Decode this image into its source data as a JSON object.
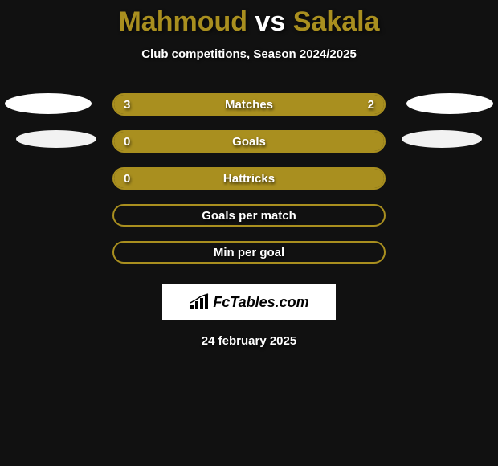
{
  "header": {
    "player1": "Mahmoud",
    "vs": "vs",
    "player2": "Sakala",
    "subtitle": "Club competitions, Season 2024/2025"
  },
  "colors": {
    "player1_accent": "#a98f1f",
    "player2_accent": "#a98f1f",
    "bar_fill": "#a98f1f",
    "bar_border": "#a98f1f",
    "background": "#111111"
  },
  "rows": [
    {
      "label": "Matches",
      "left_value": "3",
      "right_value": "2",
      "left_pct": 60,
      "right_pct": 40,
      "show_left_ellipse": true,
      "show_right_ellipse": true,
      "ellipse_class_left": "left1",
      "ellipse_class_right": "right1"
    },
    {
      "label": "Goals",
      "left_value": "0",
      "right_value": "",
      "left_pct": 100,
      "right_pct": 0,
      "show_left_ellipse": true,
      "show_right_ellipse": true,
      "ellipse_class_left": "left2",
      "ellipse_class_right": "right2"
    },
    {
      "label": "Hattricks",
      "left_value": "0",
      "right_value": "",
      "left_pct": 100,
      "right_pct": 0,
      "show_left_ellipse": false,
      "show_right_ellipse": false
    },
    {
      "label": "Goals per match",
      "left_value": "",
      "right_value": "",
      "left_pct": 0,
      "right_pct": 0,
      "show_left_ellipse": false,
      "show_right_ellipse": false
    },
    {
      "label": "Min per goal",
      "left_value": "",
      "right_value": "",
      "left_pct": 0,
      "right_pct": 0,
      "show_left_ellipse": false,
      "show_right_ellipse": false
    }
  ],
  "footer": {
    "logo_text": "FcTables.com",
    "date": "24 february 2025"
  }
}
